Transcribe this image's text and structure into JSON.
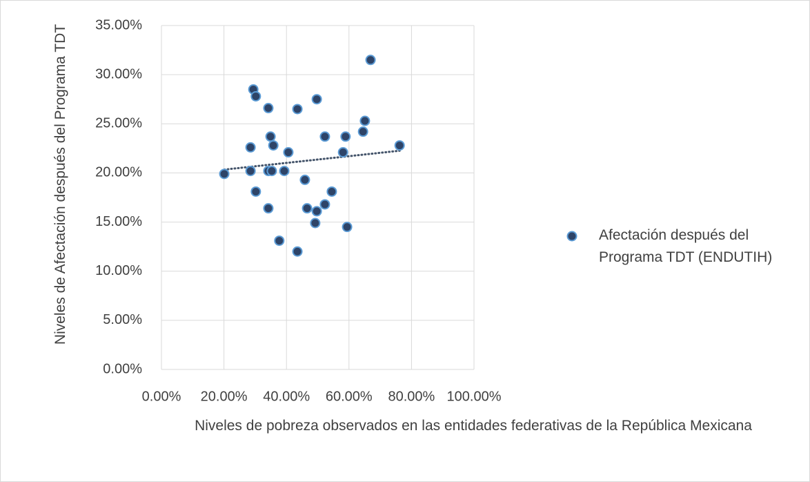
{
  "chart_data": {
    "type": "scatter",
    "x_label": "Niveles de pobreza observados en las entidades federativas de la República Mexicana",
    "y_label": "Niveles de Afectación después del Programa TDT",
    "series": [
      {
        "name": "Afectación después del Programa TDT (ENDUTIH)",
        "color": "#2e4468",
        "edge_color": "#5b9bd5",
        "x": [
          20.1,
          28.5,
          28.5,
          29.4,
          30.2,
          30.2,
          34.2,
          34.2,
          34.2,
          34.9,
          35.3,
          35.8,
          37.7,
          39.3,
          40.6,
          43.5,
          43.5,
          45.9,
          46.6,
          49.7,
          49.2,
          49.7,
          52.3,
          52.3,
          54.5,
          58.1,
          58.9,
          59.4,
          64.5,
          65.1,
          66.9,
          76.2
        ],
        "values": [
          19.9,
          22.6,
          20.2,
          28.5,
          27.8,
          18.1,
          26.6,
          16.4,
          20.2,
          23.7,
          20.2,
          22.8,
          13.1,
          20.2,
          22.1,
          26.5,
          12.0,
          19.3,
          16.4,
          27.5,
          14.9,
          16.1,
          16.8,
          23.7,
          18.1,
          22.1,
          23.7,
          14.5,
          24.2,
          25.3,
          31.5,
          22.8
        ]
      }
    ],
    "trendline": "linear",
    "xlim": [
      0,
      100
    ],
    "xticks": [
      {
        "value": 0,
        "label": "0.00%"
      },
      {
        "value": 20,
        "label": "20.00%"
      },
      {
        "value": 40,
        "label": "40.00%"
      },
      {
        "value": 60,
        "label": "60.00%"
      },
      {
        "value": 80,
        "label": "80.00%"
      },
      {
        "value": 100,
        "label": "100.00%"
      }
    ],
    "ylim": [
      0,
      35
    ],
    "yticks": [
      {
        "value": 0,
        "label": "0.00%"
      },
      {
        "value": 5,
        "label": "5.00%"
      },
      {
        "value": 10,
        "label": "10.00%"
      },
      {
        "value": 15,
        "label": "15.00%"
      },
      {
        "value": 20,
        "label": "20.00%"
      },
      {
        "value": 25,
        "label": "25.00%"
      },
      {
        "value": 30,
        "label": "30.00%"
      },
      {
        "value": 35,
        "label": "35.00%"
      }
    ],
    "grid": true,
    "legend": "right"
  }
}
